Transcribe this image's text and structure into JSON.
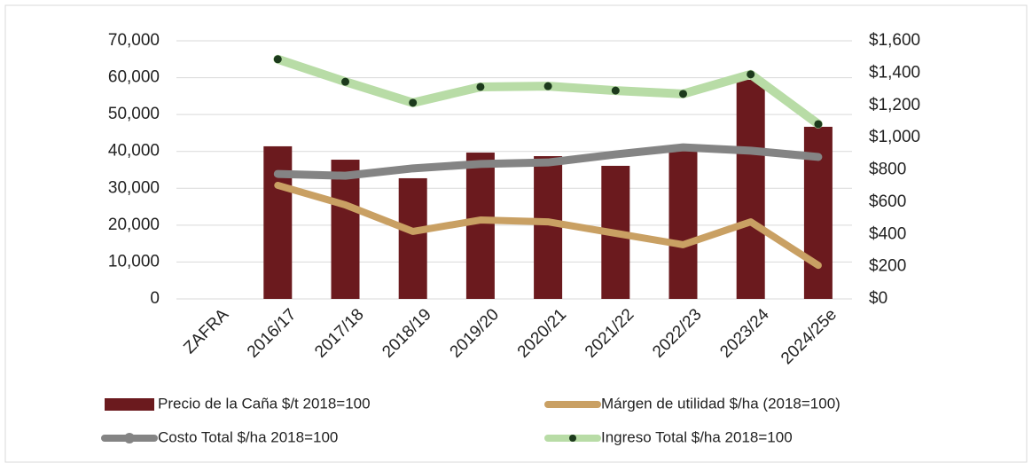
{
  "chart_data": {
    "type": "bar",
    "categories": [
      "ZAFRA",
      "2016/17",
      "2017/18",
      "2018/19",
      "2019/20",
      "2020/21",
      "2021/22",
      "2022/23",
      "2023/24",
      "2024/25e"
    ],
    "series": [
      {
        "name": "Precio de la Caña $/t 2018=100",
        "type": "bar",
        "axis": "y2",
        "color": "#6b1a1e",
        "values": [
          null,
          946,
          863,
          748,
          907,
          885,
          825,
          940,
          1358,
          1067
        ]
      },
      {
        "name": "Márgen de utilidad $/ha (2018=100)",
        "type": "line",
        "color": "#c9a063",
        "values": [
          null,
          30800,
          25500,
          18300,
          21400,
          20900,
          17800,
          14700,
          20900,
          9100
        ]
      },
      {
        "name": "Costo Total $/ha 2018=100",
        "type": "line",
        "color": "#848484",
        "marker": true,
        "values": [
          null,
          33900,
          33400,
          35400,
          36600,
          37000,
          39200,
          41100,
          40200,
          38500
        ]
      },
      {
        "name": "Ingreso Total $/ha 2018=100",
        "type": "line",
        "color": "#b8dca6",
        "marker_color": "#1c3a1c",
        "marker": true,
        "values": [
          null,
          65000,
          58900,
          53200,
          57500,
          57700,
          56500,
          55600,
          60900,
          47400
        ]
      }
    ],
    "ylim": [
      0,
      70000
    ],
    "yticks": [
      {
        "value": 0,
        "label": "0"
      },
      {
        "value": 10000,
        "label": "10,000"
      },
      {
        "value": 20000,
        "label": "20,000"
      },
      {
        "value": 30000,
        "label": "30,000"
      },
      {
        "value": 40000,
        "label": "40,000"
      },
      {
        "value": 50000,
        "label": "50,000"
      },
      {
        "value": 60000,
        "label": "60,000"
      },
      {
        "value": 70000,
        "label": "70,000"
      }
    ],
    "y2lim": [
      0,
      1600
    ],
    "y2ticks": [
      {
        "value": 0,
        "label": "$0"
      },
      {
        "value": 200,
        "label": "$200"
      },
      {
        "value": 400,
        "label": "$400"
      },
      {
        "value": 600,
        "label": "$600"
      },
      {
        "value": 800,
        "label": "$800"
      },
      {
        "value": 1000,
        "label": "$1,000"
      },
      {
        "value": 1200,
        "label": "$1,200"
      },
      {
        "value": 1400,
        "label": "$1,400"
      },
      {
        "value": 1600,
        "label": "$1,600"
      }
    ],
    "grid": true
  }
}
